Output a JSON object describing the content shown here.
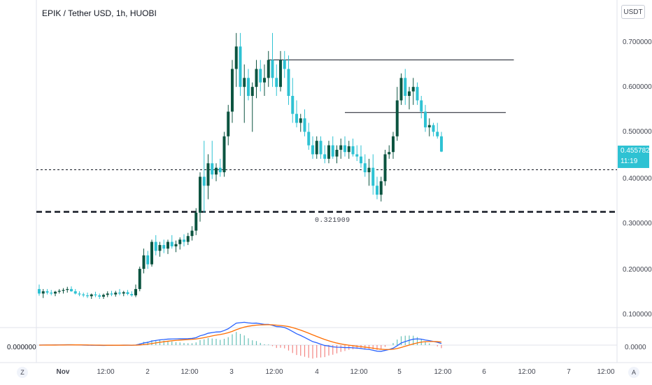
{
  "header": {
    "title": "EPIK / Tether USD, 1h, HUOBI",
    "currency_button": "USDT"
  },
  "price_axis": {
    "ticks": [
      "0.700000",
      "0.600000",
      "0.500000",
      "0.400000",
      "0.300000",
      "0.200000",
      "0.100000"
    ],
    "last_price": "0.455782",
    "countdown": "11:19"
  },
  "time_axis": {
    "ticks": [
      "Nov",
      "12:00",
      "2",
      "12:00",
      "3",
      "12:00",
      "4",
      "12:00",
      "5",
      "12:00",
      "6",
      "12:00",
      "7",
      "12:00"
    ],
    "left_button": "Z",
    "right_button": "A"
  },
  "annotations": {
    "level_label": "0.321909"
  },
  "macd_pane": {
    "value_label": "0.000000",
    "scale_label": "0.0000"
  },
  "colors": {
    "up": "#0c5440",
    "down": "#2ec2d3",
    "macd": "#2962ff",
    "signal": "#ff6d00"
  },
  "chart_data": {
    "type": "candlestick",
    "ylim": [
      0.04,
      0.76
    ],
    "xlim_hours": [
      0,
      136
    ],
    "levels": [
      {
        "value": 0.4155,
        "style": "dotted"
      },
      {
        "value": 0.321909,
        "style": "dashed"
      }
    ],
    "trend_lines": [
      {
        "from_index": 57,
        "to_index": 118,
        "value": 0.66
      },
      {
        "from_index": 76,
        "to_index": 116,
        "value": 0.543
      }
    ],
    "ohlc": [
      [
        0.15,
        0.16,
        0.135,
        0.14
      ],
      [
        0.14,
        0.15,
        0.13,
        0.145
      ],
      [
        0.145,
        0.15,
        0.138,
        0.142
      ],
      [
        0.142,
        0.148,
        0.136,
        0.14
      ],
      [
        0.14,
        0.146,
        0.134,
        0.144
      ],
      [
        0.144,
        0.15,
        0.14,
        0.146
      ],
      [
        0.146,
        0.152,
        0.14,
        0.148
      ],
      [
        0.148,
        0.155,
        0.142,
        0.15
      ],
      [
        0.15,
        0.156,
        0.144,
        0.145
      ],
      [
        0.145,
        0.15,
        0.138,
        0.14
      ],
      [
        0.14,
        0.145,
        0.134,
        0.138
      ],
      [
        0.138,
        0.142,
        0.132,
        0.136
      ],
      [
        0.136,
        0.142,
        0.13,
        0.134
      ],
      [
        0.134,
        0.14,
        0.128,
        0.138
      ],
      [
        0.138,
        0.144,
        0.132,
        0.136
      ],
      [
        0.136,
        0.14,
        0.128,
        0.133
      ],
      [
        0.133,
        0.14,
        0.128,
        0.137
      ],
      [
        0.137,
        0.145,
        0.132,
        0.14
      ],
      [
        0.14,
        0.146,
        0.134,
        0.138
      ],
      [
        0.138,
        0.146,
        0.133,
        0.142
      ],
      [
        0.142,
        0.15,
        0.136,
        0.14
      ],
      [
        0.14,
        0.146,
        0.134,
        0.143
      ],
      [
        0.143,
        0.148,
        0.136,
        0.139
      ],
      [
        0.139,
        0.145,
        0.133,
        0.136
      ],
      [
        0.136,
        0.16,
        0.132,
        0.15
      ],
      [
        0.15,
        0.2,
        0.145,
        0.195
      ],
      [
        0.195,
        0.24,
        0.185,
        0.225
      ],
      [
        0.225,
        0.235,
        0.195,
        0.205
      ],
      [
        0.205,
        0.26,
        0.2,
        0.255
      ],
      [
        0.255,
        0.27,
        0.225,
        0.235
      ],
      [
        0.235,
        0.255,
        0.222,
        0.248
      ],
      [
        0.248,
        0.26,
        0.23,
        0.24
      ],
      [
        0.24,
        0.26,
        0.228,
        0.255
      ],
      [
        0.255,
        0.27,
        0.24,
        0.245
      ],
      [
        0.245,
        0.258,
        0.232,
        0.25
      ],
      [
        0.25,
        0.265,
        0.238,
        0.26
      ],
      [
        0.26,
        0.272,
        0.245,
        0.255
      ],
      [
        0.255,
        0.275,
        0.248,
        0.268
      ],
      [
        0.268,
        0.29,
        0.258,
        0.28
      ],
      [
        0.28,
        0.33,
        0.27,
        0.32
      ],
      [
        0.32,
        0.41,
        0.3,
        0.4
      ],
      [
        0.4,
        0.48,
        0.32,
        0.38
      ],
      [
        0.38,
        0.45,
        0.35,
        0.43
      ],
      [
        0.43,
        0.48,
        0.395,
        0.405
      ],
      [
        0.405,
        0.43,
        0.39,
        0.42
      ],
      [
        0.42,
        0.44,
        0.4,
        0.41
      ],
      [
        0.41,
        0.5,
        0.4,
        0.49
      ],
      [
        0.49,
        0.56,
        0.47,
        0.545
      ],
      [
        0.545,
        0.66,
        0.52,
        0.64
      ],
      [
        0.64,
        0.72,
        0.6,
        0.69
      ],
      [
        0.69,
        0.72,
        0.58,
        0.6
      ],
      [
        0.6,
        0.65,
        0.52,
        0.62
      ],
      [
        0.62,
        0.64,
        0.57,
        0.58
      ],
      [
        0.58,
        0.61,
        0.5,
        0.6
      ],
      [
        0.6,
        0.66,
        0.575,
        0.64
      ],
      [
        0.64,
        0.66,
        0.59,
        0.61
      ],
      [
        0.61,
        0.65,
        0.58,
        0.62
      ],
      [
        0.62,
        0.68,
        0.6,
        0.66
      ],
      [
        0.66,
        0.72,
        0.6,
        0.62
      ],
      [
        0.62,
        0.65,
        0.58,
        0.6
      ],
      [
        0.6,
        0.68,
        0.59,
        0.66
      ],
      [
        0.66,
        0.68,
        0.62,
        0.64
      ],
      [
        0.64,
        0.67,
        0.56,
        0.58
      ],
      [
        0.58,
        0.62,
        0.52,
        0.54
      ],
      [
        0.54,
        0.57,
        0.51,
        0.52
      ],
      [
        0.52,
        0.54,
        0.5,
        0.53
      ],
      [
        0.53,
        0.55,
        0.49,
        0.5
      ],
      [
        0.5,
        0.52,
        0.46,
        0.47
      ],
      [
        0.47,
        0.49,
        0.44,
        0.45
      ],
      [
        0.45,
        0.49,
        0.44,
        0.48
      ],
      [
        0.48,
        0.49,
        0.44,
        0.45
      ],
      [
        0.45,
        0.47,
        0.43,
        0.44
      ],
      [
        0.44,
        0.48,
        0.43,
        0.47
      ],
      [
        0.47,
        0.49,
        0.44,
        0.445
      ],
      [
        0.445,
        0.47,
        0.43,
        0.46
      ],
      [
        0.46,
        0.485,
        0.44,
        0.47
      ],
      [
        0.47,
        0.49,
        0.445,
        0.455
      ],
      [
        0.455,
        0.48,
        0.44,
        0.468
      ],
      [
        0.468,
        0.485,
        0.445,
        0.45
      ],
      [
        0.45,
        0.47,
        0.435,
        0.445
      ],
      [
        0.445,
        0.47,
        0.42,
        0.43
      ],
      [
        0.43,
        0.45,
        0.4,
        0.41
      ],
      [
        0.41,
        0.44,
        0.38,
        0.42
      ],
      [
        0.42,
        0.45,
        0.36,
        0.38
      ],
      [
        0.38,
        0.4,
        0.35,
        0.36
      ],
      [
        0.36,
        0.4,
        0.345,
        0.39
      ],
      [
        0.39,
        0.46,
        0.38,
        0.45
      ],
      [
        0.45,
        0.47,
        0.44,
        0.455
      ],
      [
        0.455,
        0.5,
        0.44,
        0.49
      ],
      [
        0.49,
        0.6,
        0.48,
        0.57
      ],
      [
        0.57,
        0.63,
        0.56,
        0.62
      ],
      [
        0.62,
        0.64,
        0.56,
        0.58
      ],
      [
        0.58,
        0.6,
        0.55,
        0.59
      ],
      [
        0.59,
        0.62,
        0.56,
        0.6
      ],
      [
        0.6,
        0.61,
        0.56,
        0.57
      ],
      [
        0.57,
        0.58,
        0.53,
        0.545
      ],
      [
        0.545,
        0.56,
        0.5,
        0.51
      ],
      [
        0.51,
        0.53,
        0.49,
        0.515
      ],
      [
        0.515,
        0.52,
        0.49,
        0.5
      ],
      [
        0.5,
        0.52,
        0.485,
        0.49
      ],
      [
        0.49,
        0.5,
        0.455,
        0.456
      ]
    ]
  }
}
